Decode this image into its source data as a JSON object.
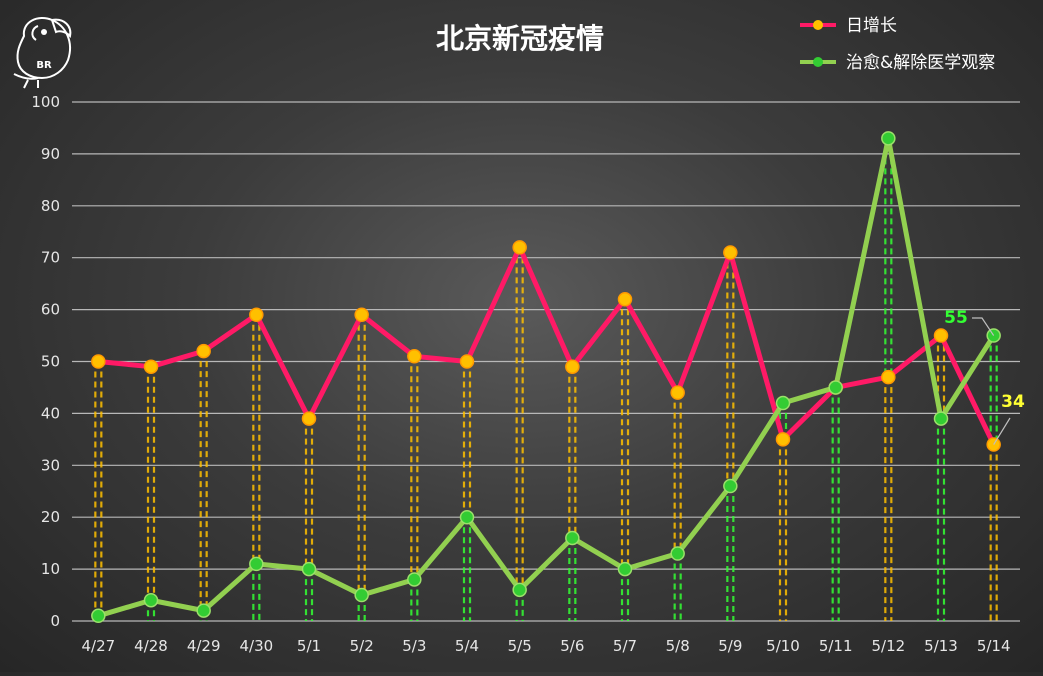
{
  "chart_data": {
    "type": "line",
    "title": "北京新冠疫情",
    "xlabel": "",
    "ylabel": "",
    "categories": [
      "4/27",
      "4/28",
      "4/29",
      "4/30",
      "5/1",
      "5/2",
      "5/3",
      "5/4",
      "5/5",
      "5/6",
      "5/7",
      "5/8",
      "5/9",
      "5/10",
      "5/11",
      "5/12",
      "5/13",
      "5/14"
    ],
    "ylim": [
      0,
      100
    ],
    "yticks": [
      0,
      10,
      20,
      30,
      40,
      50,
      60,
      70,
      80,
      90,
      100
    ],
    "grid": true,
    "legend_position": "top-right",
    "series": [
      {
        "name": "日增长",
        "color": "#ff1a66",
        "marker_color": "#ffc000",
        "values": [
          50,
          49,
          52,
          59,
          39,
          59,
          51,
          50,
          72,
          49,
          62,
          44,
          71,
          35,
          45,
          47,
          55,
          34
        ]
      },
      {
        "name": "治愈&解除医学观察",
        "color": "#92d050",
        "marker_color": "#33cc33",
        "values": [
          1,
          4,
          2,
          11,
          10,
          5,
          8,
          20,
          6,
          16,
          10,
          13,
          26,
          42,
          45,
          93,
          39,
          55
        ]
      }
    ],
    "annotations": [
      {
        "text": "55",
        "series": 1,
        "index": 17,
        "color": "#33ff33"
      },
      {
        "text": "34",
        "series": 0,
        "index": 17,
        "color": "#ffff33"
      }
    ]
  },
  "logo": {
    "text": "BR",
    "icon": "parrot-icon"
  }
}
